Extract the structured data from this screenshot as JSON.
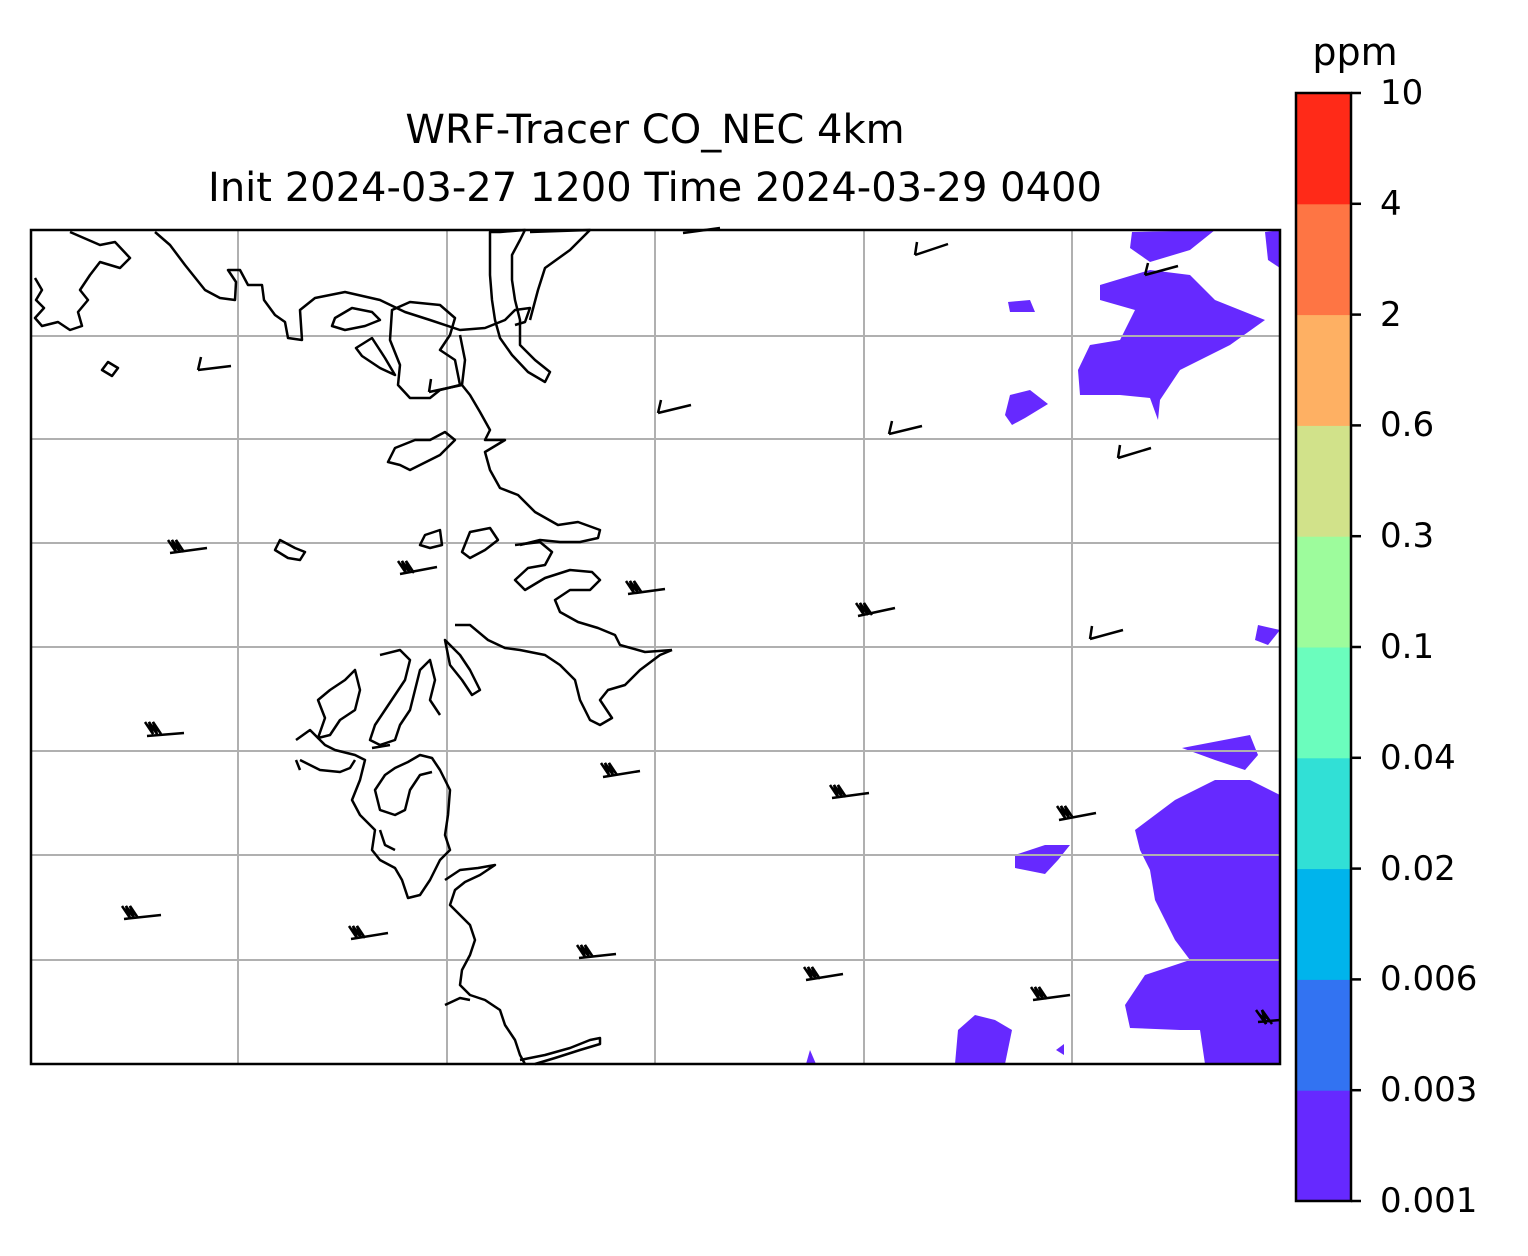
{
  "title_line1": "WRF-Tracer CO_NEC 4km",
  "title_line2": "Init 2024-03-27 1200 Time 2024-03-29 0400",
  "colorbar": {
    "unit": "ppm",
    "levels": [
      "0.001",
      "0.003",
      "0.006",
      "0.02",
      "0.04",
      "0.1",
      "0.3",
      "0.6",
      "2",
      "4",
      "10"
    ],
    "colors": [
      "#6629ff",
      "#3273f2",
      "#00b4ec",
      "#31e0d6",
      "#6bfdbd",
      "#9dfc9c",
      "#d1e28a",
      "#feb063",
      "#fe7544",
      "#ff2a18"
    ]
  },
  "map": {
    "gridlines": true,
    "coastline_color": "#000000",
    "grid_color": "#b0b0b0",
    "tracer_fill_color": "#6629ff",
    "wind_barbs": true
  }
}
